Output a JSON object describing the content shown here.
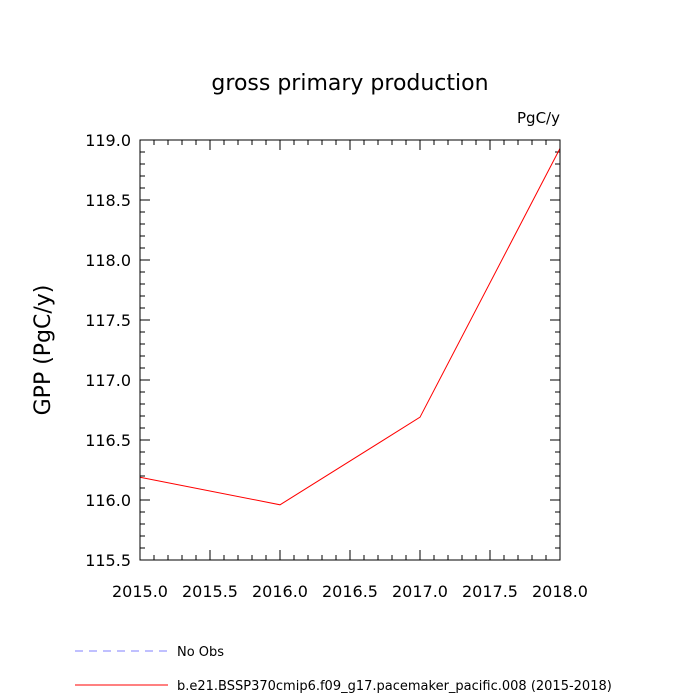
{
  "chart_data": {
    "type": "line",
    "title": "gross primary production",
    "units": "PgC/y",
    "ylabel": "GPP  (PgC/y)",
    "xlabel": "",
    "xlim": [
      2015.0,
      2018.0
    ],
    "ylim": [
      115.5,
      119.0
    ],
    "x_ticks": [
      "2015.0",
      "2015.5",
      "2016.0",
      "2016.5",
      "2017.0",
      "2017.5",
      "2018.0"
    ],
    "y_ticks": [
      "115.5",
      "116.0",
      "116.5",
      "117.0",
      "117.5",
      "118.0",
      "118.5",
      "119.0"
    ],
    "grid": false,
    "legend_position": "bottom",
    "series": [
      {
        "name": "b.e21.BSSP370cmip6.f09_g17.pacemaker_pacific.008 (2015-2018)",
        "color": "#ff0000",
        "style": "solid",
        "x": [
          2015,
          2016,
          2017,
          2018
        ],
        "y": [
          116.19,
          115.96,
          116.69,
          118.93
        ]
      }
    ],
    "legend": [
      {
        "label": "No Obs",
        "color": "#8080ff",
        "style": "dashed"
      },
      {
        "label": "b.e21.BSSP370cmip6.f09_g17.pacemaker_pacific.008 (2015-2018)",
        "color": "#ff0000",
        "style": "solid"
      }
    ]
  }
}
